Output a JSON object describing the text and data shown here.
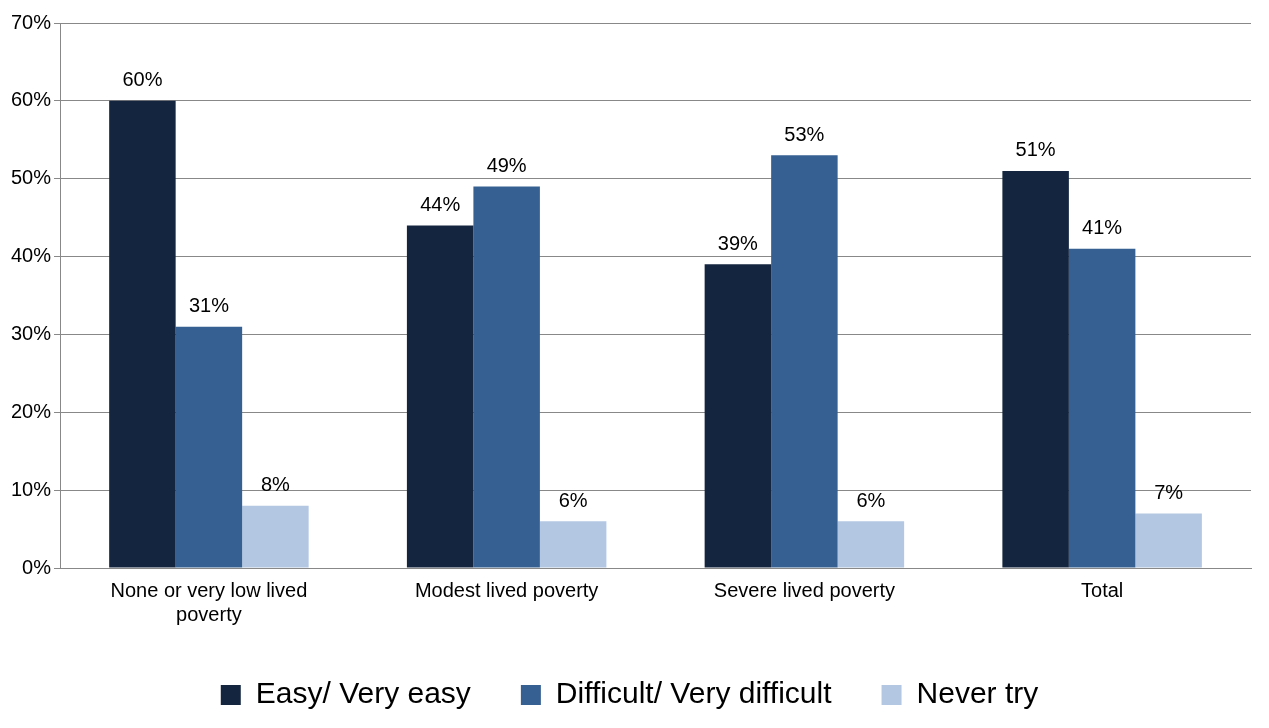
{
  "chart_data": {
    "type": "bar",
    "categories": [
      "None or very low lived poverty",
      "Modest lived poverty",
      "Severe lived poverty",
      "Total"
    ],
    "series": [
      {
        "name": "Easy/ Very easy",
        "color": "#14263f",
        "values": [
          60,
          44,
          39,
          51
        ],
        "value_labels": [
          "60%",
          "44%",
          "39%",
          "51%"
        ]
      },
      {
        "name": "Difficult/ Very difficult",
        "color": "#376092",
        "values": [
          31,
          49,
          53,
          41
        ],
        "value_labels": [
          "31%",
          "49%",
          "53%",
          "41%"
        ]
      },
      {
        "name": "Never try",
        "color": "#b3c7e2",
        "values": [
          8,
          6,
          6,
          7
        ],
        "value_labels": [
          "8%",
          "6%",
          "6%",
          "7%"
        ]
      }
    ],
    "ylim": [
      0,
      70
    ],
    "yticks": [
      {
        "value": 0,
        "label": "0%"
      },
      {
        "value": 10,
        "label": "10%"
      },
      {
        "value": 20,
        "label": "20%"
      },
      {
        "value": 30,
        "label": "30%"
      },
      {
        "value": 40,
        "label": "40%"
      },
      {
        "value": 50,
        "label": "50%"
      },
      {
        "value": 60,
        "label": "60%"
      },
      {
        "value": 70,
        "label": "70%"
      }
    ],
    "grid": "y",
    "legend": "bottom"
  }
}
